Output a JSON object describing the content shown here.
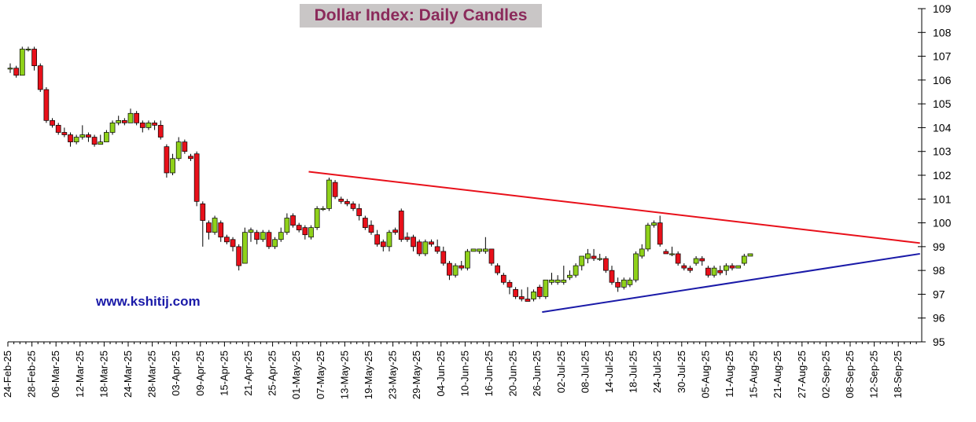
{
  "title": "Dollar Index: Daily Candles",
  "watermark": "www.kshitij.com",
  "chart_data": {
    "type": "candlestick",
    "title": "Dollar Index: Daily Candles",
    "ylim": [
      95,
      109
    ],
    "y_ticks": [
      95,
      96,
      97,
      98,
      99,
      100,
      101,
      102,
      103,
      104,
      105,
      106,
      107,
      108,
      109
    ],
    "y_axis_side": "right",
    "x_ticks": [
      "24-Feb-25",
      "28-Feb-25",
      "06-Mar-25",
      "12-Mar-25",
      "18-Mar-25",
      "24-Mar-25",
      "28-Mar-25",
      "03-Apr-25",
      "09-Apr-25",
      "15-Apr-25",
      "21-Apr-25",
      "25-Apr-25",
      "01-May-25",
      "07-May-25",
      "13-May-25",
      "19-May-25",
      "23-May-25",
      "29-May-25",
      "04-Jun-25",
      "10-Jun-25",
      "16-Jun-25",
      "20-Jun-25",
      "26-Jun-25",
      "02-Jul-25",
      "08-Jul-25",
      "14-Jul-25",
      "18-Jul-25",
      "24-Jul-25",
      "30-Jul-25",
      "05-Aug-25",
      "11-Aug-25",
      "15-Aug-25",
      "21-Aug-25",
      "27-Aug-25",
      "02-Sep-25",
      "08-Sep-25",
      "12-Sep-25",
      "18-Sep-25"
    ],
    "grid": false,
    "colors": {
      "up": "#8fd11a",
      "down": "#e8101a",
      "resistance": "#e8101a",
      "support": "#1a1aa8",
      "title_bg": "#c9c6c6",
      "title_text": "#8b2a5b"
    },
    "trendlines": [
      {
        "name": "resistance",
        "from": [
          12.5,
          102.15
        ],
        "to": [
          37.9,
          99.15
        ]
      },
      {
        "name": "support",
        "from": [
          22.2,
          96.25
        ],
        "to": [
          37.9,
          98.7
        ]
      }
    ],
    "candles": [
      [
        106.5,
        106.7,
        106.3,
        106.5
      ],
      [
        106.5,
        106.6,
        106.1,
        106.2
      ],
      [
        106.2,
        107.4,
        106.2,
        107.3
      ],
      [
        107.3,
        107.4,
        107.2,
        107.3
      ],
      [
        107.3,
        107.4,
        106.4,
        106.6
      ],
      [
        106.6,
        106.7,
        105.5,
        105.6
      ],
      [
        105.6,
        105.7,
        104.2,
        104.3
      ],
      [
        104.3,
        104.4,
        104.0,
        104.1
      ],
      [
        104.1,
        104.2,
        103.7,
        103.8
      ],
      [
        103.8,
        104.0,
        103.6,
        103.7
      ],
      [
        103.7,
        103.8,
        103.2,
        103.4
      ],
      [
        103.4,
        103.7,
        103.3,
        103.6
      ],
      [
        103.6,
        104.1,
        103.5,
        103.7
      ],
      [
        103.7,
        103.8,
        103.4,
        103.6
      ],
      [
        103.6,
        103.7,
        103.2,
        103.3
      ],
      [
        103.3,
        103.7,
        103.3,
        103.4
      ],
      [
        103.4,
        103.9,
        103.4,
        103.8
      ],
      [
        103.8,
        104.3,
        103.7,
        104.2
      ],
      [
        104.2,
        104.5,
        104.1,
        104.3
      ],
      [
        104.3,
        104.4,
        104.1,
        104.2
      ],
      [
        104.2,
        104.8,
        104.2,
        104.6
      ],
      [
        104.6,
        104.7,
        104.1,
        104.2
      ],
      [
        104.2,
        104.3,
        103.8,
        104.0
      ],
      [
        104.0,
        104.3,
        103.9,
        104.2
      ],
      [
        104.2,
        104.3,
        103.9,
        104.1
      ],
      [
        104.1,
        104.3,
        103.5,
        103.6
      ],
      [
        103.2,
        103.3,
        101.9,
        102.1
      ],
      [
        102.1,
        102.9,
        102.0,
        102.7
      ],
      [
        102.7,
        103.6,
        102.6,
        103.4
      ],
      [
        103.4,
        103.5,
        102.9,
        103.0
      ],
      [
        102.8,
        102.9,
        102.6,
        102.7
      ],
      [
        102.9,
        103.0,
        100.7,
        100.9
      ],
      [
        100.8,
        100.9,
        99.0,
        100.1
      ],
      [
        100.0,
        100.1,
        99.3,
        99.6
      ],
      [
        99.6,
        100.3,
        99.5,
        100.2
      ],
      [
        100.0,
        100.1,
        99.2,
        99.4
      ],
      [
        99.4,
        99.5,
        99.1,
        99.2
      ],
      [
        99.3,
        99.4,
        98.8,
        99.0
      ],
      [
        99.0,
        99.1,
        98.0,
        98.2
      ],
      [
        98.3,
        99.8,
        98.3,
        99.6
      ],
      [
        99.6,
        99.8,
        99.2,
        99.7
      ],
      [
        99.6,
        99.7,
        99.1,
        99.3
      ],
      [
        99.3,
        99.7,
        99.2,
        99.6
      ],
      [
        99.6,
        99.7,
        98.9,
        99.0
      ],
      [
        99.0,
        99.4,
        98.9,
        99.3
      ],
      [
        99.3,
        99.8,
        99.2,
        99.6
      ],
      [
        99.6,
        100.4,
        99.5,
        100.2
      ],
      [
        100.3,
        100.4,
        99.8,
        99.9
      ],
      [
        99.9,
        100.0,
        99.6,
        99.7
      ],
      [
        99.8,
        99.9,
        99.3,
        99.5
      ],
      [
        99.4,
        99.9,
        99.3,
        99.8
      ],
      [
        99.8,
        100.7,
        99.7,
        100.6
      ],
      [
        100.6,
        100.7,
        100.5,
        100.6
      ],
      [
        100.6,
        101.9,
        100.5,
        101.8
      ],
      [
        101.7,
        101.8,
        101.0,
        101.1
      ],
      [
        101.0,
        101.1,
        100.8,
        100.9
      ],
      [
        100.9,
        101.0,
        100.7,
        100.8
      ],
      [
        100.8,
        100.9,
        100.5,
        100.6
      ],
      [
        100.6,
        100.8,
        100.1,
        100.3
      ],
      [
        100.2,
        100.3,
        99.7,
        99.8
      ],
      [
        99.9,
        100.1,
        99.5,
        99.6
      ],
      [
        99.5,
        99.7,
        99.0,
        99.1
      ],
      [
        99.2,
        99.3,
        98.8,
        99.0
      ],
      [
        99.0,
        99.7,
        98.8,
        99.6
      ],
      [
        99.7,
        99.8,
        99.5,
        99.6
      ],
      [
        100.5,
        100.6,
        99.2,
        99.3
      ],
      [
        99.4,
        99.6,
        99.2,
        99.3
      ],
      [
        99.4,
        99.5,
        98.8,
        99.0
      ],
      [
        99.2,
        99.3,
        98.6,
        98.7
      ],
      [
        98.7,
        99.3,
        98.6,
        99.2
      ],
      [
        99.2,
        99.3,
        99.0,
        99.1
      ],
      [
        99.0,
        99.3,
        98.7,
        98.8
      ],
      [
        98.8,
        99.0,
        98.2,
        98.3
      ],
      [
        98.3,
        98.4,
        97.6,
        97.8
      ],
      [
        97.8,
        98.3,
        97.7,
        98.2
      ],
      [
        98.2,
        98.4,
        98.0,
        98.1
      ],
      [
        98.1,
        98.9,
        98.0,
        98.8
      ],
      [
        98.8,
        98.9,
        98.8,
        98.9
      ],
      [
        98.8,
        98.9,
        98.7,
        98.9
      ],
      [
        98.8,
        99.4,
        98.7,
        98.9
      ],
      [
        98.9,
        98.9,
        98.2,
        98.3
      ],
      [
        98.2,
        98.3,
        97.8,
        97.9
      ],
      [
        97.8,
        97.9,
        97.4,
        97.5
      ],
      [
        97.5,
        97.6,
        97.0,
        97.3
      ],
      [
        97.2,
        97.3,
        96.8,
        96.9
      ],
      [
        96.9,
        97.2,
        96.7,
        96.8
      ],
      [
        96.8,
        97.3,
        96.7,
        96.7
      ],
      [
        96.8,
        97.2,
        96.7,
        97.1
      ],
      [
        97.3,
        97.4,
        96.8,
        96.9
      ],
      [
        96.9,
        97.6,
        96.8,
        97.6
      ],
      [
        97.5,
        97.9,
        97.4,
        97.6
      ],
      [
        97.5,
        97.8,
        97.4,
        97.6
      ],
      [
        97.5,
        98.2,
        97.4,
        97.6
      ],
      [
        97.7,
        98.0,
        97.6,
        97.8
      ],
      [
        97.8,
        98.3,
        97.7,
        98.2
      ],
      [
        98.2,
        98.6,
        98.0,
        98.6
      ],
      [
        98.5,
        98.9,
        98.3,
        98.7
      ],
      [
        98.6,
        98.9,
        98.4,
        98.5
      ],
      [
        98.5,
        98.7,
        98.4,
        98.5
      ],
      [
        98.5,
        98.6,
        97.9,
        98.0
      ],
      [
        98.0,
        98.2,
        97.4,
        97.5
      ],
      [
        97.5,
        97.7,
        97.1,
        97.3
      ],
      [
        97.3,
        97.7,
        97.2,
        97.6
      ],
      [
        97.4,
        97.7,
        97.3,
        97.6
      ],
      [
        97.6,
        98.8,
        97.5,
        98.7
      ],
      [
        98.6,
        99.1,
        98.5,
        98.9
      ],
      [
        98.9,
        100.0,
        98.8,
        99.9
      ],
      [
        99.9,
        100.1,
        99.8,
        100.0
      ],
      [
        100.0,
        100.3,
        99.0,
        99.1
      ],
      [
        98.8,
        98.9,
        98.7,
        98.7
      ],
      [
        98.7,
        99.0,
        98.6,
        98.7
      ],
      [
        98.7,
        98.8,
        98.2,
        98.3
      ],
      [
        98.2,
        98.3,
        98.0,
        98.1
      ],
      [
        98.1,
        98.2,
        97.9,
        98.0
      ],
      [
        98.3,
        98.6,
        98.2,
        98.5
      ],
      [
        98.5,
        98.6,
        98.2,
        98.4
      ],
      [
        98.1,
        98.2,
        97.7,
        97.8
      ],
      [
        97.8,
        98.2,
        97.7,
        98.1
      ],
      [
        98.0,
        98.2,
        97.8,
        97.9
      ],
      [
        98.0,
        98.3,
        97.8,
        98.2
      ],
      [
        98.2,
        98.3,
        98.0,
        98.1
      ],
      [
        98.1,
        98.2,
        98.1,
        98.2
      ],
      [
        98.3,
        98.7,
        98.2,
        98.6
      ],
      [
        98.6,
        98.7,
        98.6,
        98.7
      ]
    ]
  }
}
